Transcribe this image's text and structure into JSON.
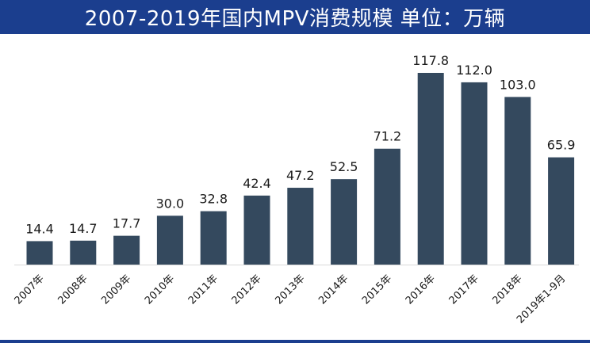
{
  "header": {
    "title": "2007-2019年国内MPV消费规模  单位：万辆"
  },
  "colors": {
    "title_bar": "#1b3e8e",
    "title_text": "#ffffff",
    "bar": "#34495e",
    "axis": "#d9d9d9",
    "label": "#1a1a1a"
  },
  "chart_data": {
    "type": "bar",
    "title": "2007-2019年国内MPV消费规模  单位：万辆",
    "unit": "万辆",
    "categories": [
      "2007年",
      "2008年",
      "2009年",
      "2010年",
      "2011年",
      "2012年",
      "2013年",
      "2014年",
      "2015年",
      "2016年",
      "2017年",
      "2018年",
      "2019年1-9月"
    ],
    "values": [
      14.4,
      14.7,
      17.7,
      30.0,
      32.8,
      42.4,
      47.2,
      52.5,
      71.2,
      117.8,
      112.0,
      103.0,
      65.9
    ],
    "value_labels": [
      "14.4",
      "14.7",
      "17.7",
      "30.0",
      "32.8",
      "42.4",
      "47.2",
      "52.5",
      "71.2",
      "117.8",
      "112.0",
      "103.0",
      "65.9"
    ],
    "ylim": [
      0,
      117.8
    ],
    "grid": false,
    "legend": false,
    "xlabel": "",
    "ylabel": ""
  }
}
